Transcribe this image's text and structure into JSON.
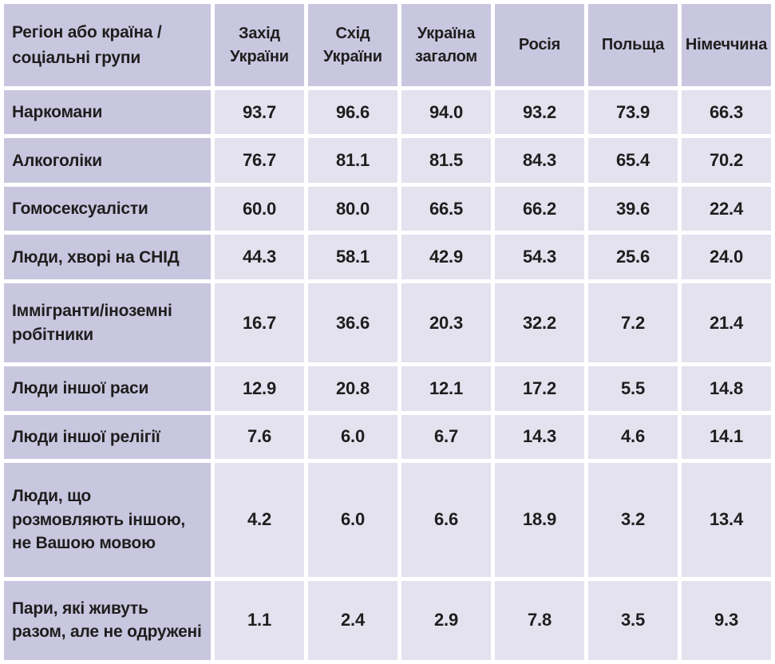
{
  "table": {
    "header": {
      "corner": "Регіон або країна / соціальні групи",
      "columns": [
        "Захід України",
        "Схід України",
        "Україна загалом",
        "Росія",
        "Польща",
        "Німеччина"
      ]
    },
    "rows": [
      {
        "label": "Наркомани",
        "values": [
          "93.7",
          "96.6",
          "94.0",
          "93.2",
          "73.9",
          "66.3"
        ]
      },
      {
        "label": "Алкоголіки",
        "values": [
          "76.7",
          "81.1",
          "81.5",
          "84.3",
          "65.4",
          "70.2"
        ]
      },
      {
        "label": "Гомосексуалісти",
        "values": [
          "60.0",
          "80.0",
          "66.5",
          "66.2",
          "39.6",
          "22.4"
        ]
      },
      {
        "label": "Люди, хворі на СНІД",
        "values": [
          "44.3",
          "58.1",
          "42.9",
          "54.3",
          "25.6",
          "24.0"
        ]
      },
      {
        "label": "Іммігранти/іноземні робітники",
        "values": [
          "16.7",
          "36.6",
          "20.3",
          "32.2",
          "7.2",
          "21.4"
        ]
      },
      {
        "label": "Люди іншої раси",
        "values": [
          "12.9",
          "20.8",
          "12.1",
          "17.2",
          "5.5",
          "14.8"
        ]
      },
      {
        "label": "Люди іншої релігії",
        "values": [
          "7.6",
          "6.0",
          "6.7",
          "14.3",
          "4.6",
          "14.1"
        ]
      },
      {
        "label": "Люди, що розмовляють іншою, не Вашою мовою",
        "values": [
          "4.2",
          "6.0",
          "6.6",
          "18.9",
          "3.2",
          "13.4"
        ]
      },
      {
        "label": "Пари, які живуть разом, але не одружені",
        "values": [
          "1.1",
          "2.4",
          "2.9",
          "7.8",
          "3.5",
          "9.3"
        ]
      }
    ]
  },
  "colors": {
    "header_bg": "#c9c7df",
    "row_label_bg": "#c9c7df",
    "data_cell_bg": "#e4e2ef",
    "gap": "#ffffff",
    "text": "#1e1e1e"
  },
  "chart_data": {
    "type": "table",
    "title": "",
    "row_header_label": "Регіон або країна / соціальні групи",
    "categories": [
      "Наркомани",
      "Алкоголіки",
      "Гомосексуалісти",
      "Люди, хворі на СНІД",
      "Іммігранти/іноземні робітники",
      "Люди іншої раси",
      "Люди іншої релігії",
      "Люди, що розмовляють іншою, не Вашою мовою",
      "Пари, які живуть разом, але не одружені"
    ],
    "series": [
      {
        "name": "Захід України",
        "values": [
          93.7,
          76.7,
          60.0,
          44.3,
          16.7,
          12.9,
          7.6,
          4.2,
          1.1
        ]
      },
      {
        "name": "Схід України",
        "values": [
          96.6,
          81.1,
          80.0,
          58.1,
          36.6,
          20.8,
          6.0,
          6.0,
          2.4
        ]
      },
      {
        "name": "Україна загалом",
        "values": [
          94.0,
          81.5,
          66.5,
          42.9,
          20.3,
          12.1,
          6.7,
          6.6,
          2.9
        ]
      },
      {
        "name": "Росія",
        "values": [
          93.2,
          84.3,
          66.2,
          54.3,
          32.2,
          17.2,
          14.3,
          18.9,
          7.8
        ]
      },
      {
        "name": "Польща",
        "values": [
          73.9,
          65.4,
          39.6,
          25.6,
          7.2,
          5.5,
          4.6,
          3.2,
          3.5
        ]
      },
      {
        "name": "Німеччина",
        "values": [
          66.3,
          70.2,
          22.4,
          24.0,
          21.4,
          14.8,
          14.1,
          13.4,
          9.3
        ]
      }
    ]
  }
}
